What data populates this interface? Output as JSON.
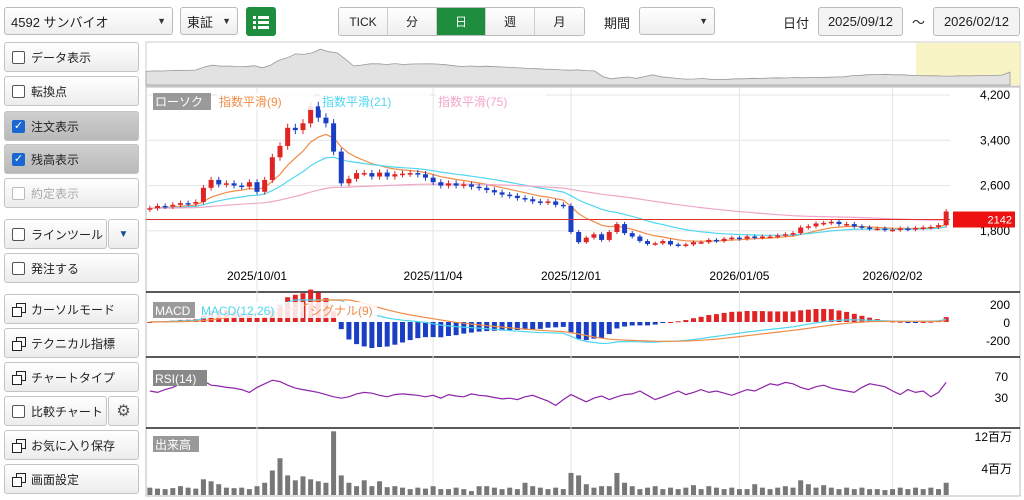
{
  "toolbar": {
    "symbol": "4592 サンバイオ",
    "exchange": "東証",
    "period_tabs": [
      "TICK",
      "分",
      "日",
      "週",
      "月"
    ],
    "active_tab": "日",
    "period_label": "期間",
    "period_value": "",
    "date_label": "日付",
    "date_from": "2025/09/12",
    "tilde": "～",
    "date_to": "2026/02/12"
  },
  "sidebar": {
    "data_display": "データ表示",
    "turning_point": "転換点",
    "order_display": "注文表示",
    "balance_display": "残高表示",
    "executed_display": "約定表示",
    "line_tool": "ラインツール",
    "place_order": "発注する",
    "cursor_mode": "カーソルモード",
    "technical": "テクニカル指標",
    "chart_type": "チャートタイプ",
    "compare_chart": "比較チャート",
    "save_favorite": "お気に入り保存",
    "screen_settings": "画面設定"
  },
  "chart_data": {
    "type": "candlestick",
    "price_ylim": [
      1250,
      4200
    ],
    "price_ticks": [
      "4,200",
      "3,400",
      "2,600",
      "1,800"
    ],
    "price_tick_values": [
      4200,
      3400,
      2600,
      1800
    ],
    "x_labels": [
      {
        "text": "2025/10/01",
        "i": 14
      },
      {
        "text": "2025/11/04",
        "i": 37
      },
      {
        "text": "2025/12/01",
        "i": 55
      },
      {
        "text": "2026/01/05",
        "i": 77
      },
      {
        "text": "2026/02/02",
        "i": 97
      }
    ],
    "legend": [
      {
        "name": "ローソク",
        "color": "#888888"
      },
      {
        "name": "指数平滑(9)",
        "color": "#f08c46"
      },
      {
        "name": "指数平滑(21)",
        "color": "#4fd6f0"
      },
      {
        "name": "指数平滑(75)",
        "color": "#f0a6c8"
      }
    ],
    "last_price": "2142",
    "last_value": 2142,
    "macd_label": "MACD",
    "macd_series": "MACD(12,26)",
    "signal_series": "シグナル(9)",
    "macd_ticks": [
      "200",
      "0",
      "-200"
    ],
    "rsi_label": "RSI(14)",
    "rsi_ticks": [
      "70",
      "30"
    ],
    "volume_label": "出来高",
    "volume_ticks": [
      "12百万",
      "4百万"
    ],
    "close": [
      2200,
      2240,
      2230,
      2260,
      2290,
      2280,
      2310,
      2560,
      2700,
      2620,
      2640,
      2600,
      2580,
      2660,
      2490,
      2700,
      3100,
      3300,
      3620,
      3580,
      3700,
      4000,
      3800,
      3700,
      3200,
      2640,
      2720,
      2820,
      2820,
      2760,
      2830,
      2760,
      2800,
      2810,
      2820,
      2800,
      2740,
      2660,
      2600,
      2640,
      2600,
      2620,
      2580,
      2560,
      2520,
      2480,
      2440,
      2420,
      2380,
      2360,
      2320,
      2300,
      2320,
      2260,
      2240,
      1780,
      1600,
      1680,
      1740,
      1640,
      1780,
      1920,
      1760,
      1700,
      1620,
      1570,
      1580,
      1620,
      1560,
      1540,
      1560,
      1600,
      1600,
      1640,
      1620,
      1660,
      1680,
      1660,
      1700,
      1680,
      1700,
      1700,
      1720,
      1740,
      1760,
      1860,
      1880,
      1930,
      1940,
      1960,
      1920,
      1920,
      1880,
      1860,
      1840,
      1840,
      1820,
      1820,
      1840,
      1830,
      1850,
      1860,
      1870,
      1900,
      2142
    ],
    "volume": [
      1.5,
      1.3,
      1.2,
      1.4,
      1.8,
      1.5,
      1.3,
      3.2,
      2.8,
      2.2,
      1.5,
      1.4,
      1.5,
      1.2,
      1.8,
      2.5,
      5,
      7.5,
      4,
      3,
      3.8,
      3.2,
      2.8,
      2.5,
      13,
      4,
      2.5,
      1.8,
      3,
      1.8,
      2.8,
      1.6,
      1.8,
      1.5,
      1.2,
      1.5,
      1.3,
      1.8,
      1.2,
      1.2,
      1.5,
      1.2,
      0.8,
      1.8,
      1.8,
      1.5,
      1.2,
      1.5,
      1.2,
      2.5,
      1.8,
      1.5,
      1.2,
      1.5,
      1.2,
      4.5,
      4,
      2.2,
      1.5,
      1.8,
      1.8,
      4.5,
      2.5,
      1.8,
      1.2,
      1.5,
      1.8,
      1.2,
      1.5,
      1.2,
      1.5,
      2,
      1.2,
      1.8,
      1.5,
      1.2,
      1.5,
      1.2,
      1.2,
      2.2,
      1.5,
      1.2,
      1.5,
      1.8,
      1.5,
      3,
      2.2,
      1.5,
      2,
      1.5,
      1.2,
      1.5,
      1.2,
      1.5,
      1.2,
      1.2,
      1,
      1.2,
      1.5,
      1.2,
      1.5,
      1.2,
      1.5,
      1.2,
      2.5
    ],
    "rsi": [
      50,
      48,
      52,
      55,
      60,
      58,
      62,
      64,
      58,
      57,
      55,
      54,
      52,
      48,
      55,
      60,
      65,
      63,
      58,
      54,
      52,
      50,
      48,
      45,
      42,
      40,
      42,
      46,
      48,
      47,
      44,
      42,
      45,
      46,
      45,
      44,
      42,
      44,
      40,
      45,
      43,
      42,
      46,
      44,
      43,
      41,
      39,
      40,
      38,
      42,
      44,
      40,
      36,
      30,
      38,
      45,
      40,
      35,
      40,
      43,
      38,
      42,
      45,
      46,
      50,
      44,
      38,
      42,
      46,
      50,
      45,
      48,
      52,
      48,
      50,
      47,
      44,
      48,
      52,
      50,
      55,
      60,
      58,
      62,
      60,
      55,
      52,
      56,
      58,
      54,
      52,
      50,
      48,
      55,
      60,
      58,
      56,
      50,
      45,
      52,
      48,
      50,
      42,
      48,
      62
    ]
  }
}
